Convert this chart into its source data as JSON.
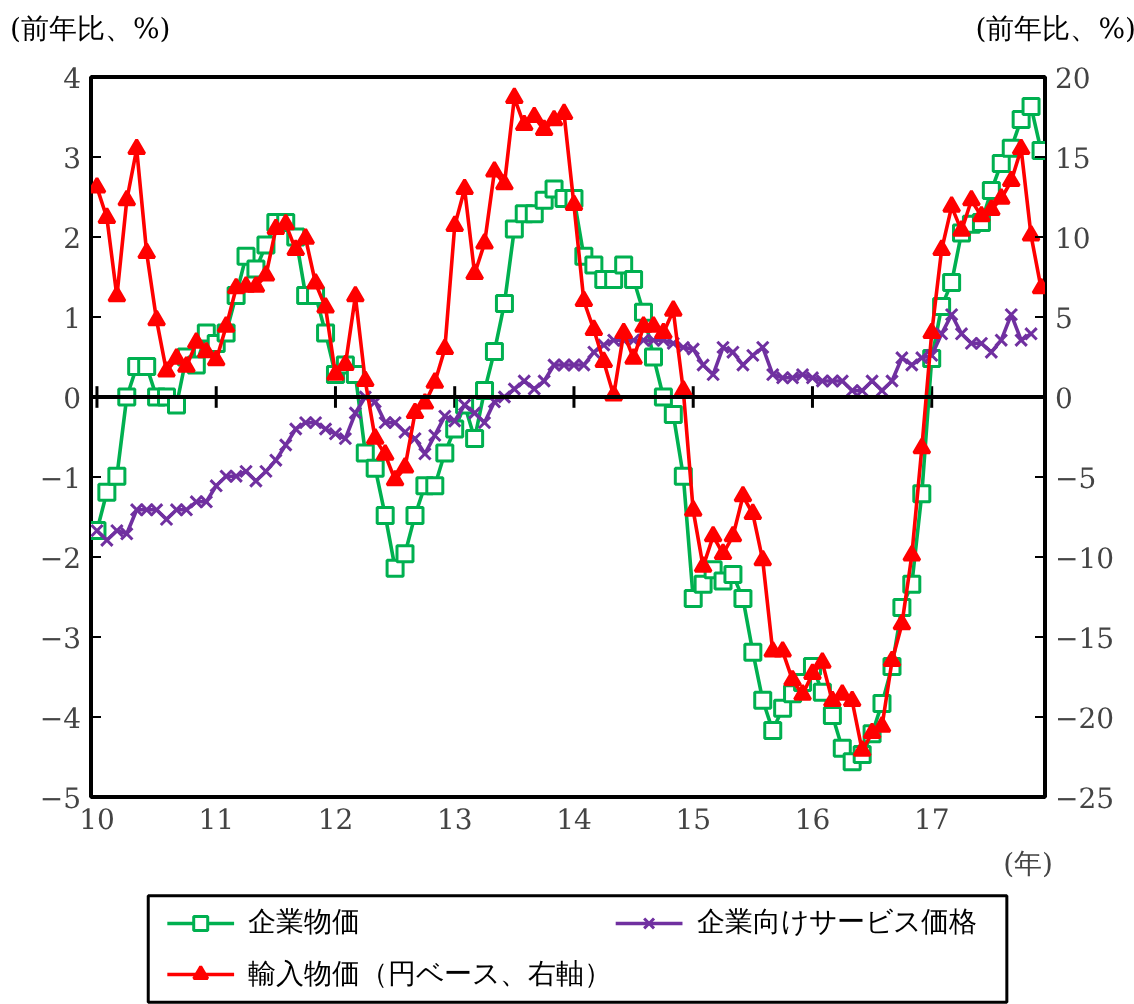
{
  "chart_data": {
    "type": "line",
    "ylabel": "(前年比、%)",
    "y2label": "(前年比、%)",
    "xlabel": "(年)",
    "xlim": [
      9.95,
      17.95
    ],
    "xticks": [
      10,
      11,
      12,
      13,
      14,
      15,
      16,
      17
    ],
    "ylim": [
      -5,
      4
    ],
    "yticks": [
      -5,
      -4,
      -3,
      -2,
      -1,
      0,
      1,
      2,
      3,
      4
    ],
    "y2lim": [
      -25,
      20
    ],
    "y2ticks": [
      -25,
      -20,
      -15,
      -10,
      -5,
      0,
      5,
      10,
      15,
      20
    ],
    "x": [
      10,
      10.083,
      10.167,
      10.25,
      10.333,
      10.417,
      10.5,
      10.583,
      10.667,
      10.75,
      10.833,
      10.917,
      11,
      11.083,
      11.167,
      11.25,
      11.333,
      11.417,
      11.5,
      11.583,
      11.667,
      11.75,
      11.833,
      11.917,
      12,
      12.083,
      12.167,
      12.25,
      12.333,
      12.417,
      12.5,
      12.583,
      12.667,
      12.75,
      12.833,
      12.917,
      13,
      13.083,
      13.167,
      13.25,
      13.333,
      13.417,
      13.5,
      13.583,
      13.667,
      13.75,
      13.833,
      13.917,
      14,
      14.083,
      14.167,
      14.25,
      14.333,
      14.417,
      14.5,
      14.583,
      14.667,
      14.75,
      14.833,
      14.917,
      15,
      15.083,
      15.167,
      15.25,
      15.333,
      15.417,
      15.5,
      15.583,
      15.667,
      15.75,
      15.833,
      15.917,
      16,
      16.083,
      16.167,
      16.25,
      16.333,
      16.417,
      16.5,
      16.583,
      16.667,
      16.75,
      16.833,
      16.917,
      17,
      17.083,
      17.167,
      17.25,
      17.333,
      17.417,
      17.5,
      17.583,
      17.667,
      17.75,
      17.833,
      17.917
    ],
    "series": [
      {
        "name": "企業物価",
        "color": "#00b050",
        "marker": "square",
        "values": [
          -1.67,
          -1.19,
          -0.99,
          0,
          0.38,
          0.38,
          0,
          0,
          -0.1,
          0.5,
          0.4,
          0.8,
          0.67,
          0.8,
          1.27,
          1.76,
          1.6,
          1.9,
          2.18,
          2.18,
          2.0,
          1.27,
          1.27,
          0.8,
          0.28,
          0.4,
          0.28,
          -0.7,
          -0.89,
          -1.48,
          -2.14,
          -1.96,
          -1.48,
          -1.11,
          -1.11,
          -0.7,
          -0.4,
          -0.1,
          -0.52,
          0.08,
          0.57,
          1.17,
          2.1,
          2.29,
          2.29,
          2.46,
          2.6,
          2.48,
          2.48,
          1.76,
          1.65,
          1.47,
          1.47,
          1.65,
          1.47,
          1.06,
          0.5,
          0,
          -0.22,
          -0.99,
          -2.52,
          -2.34,
          -2.16,
          -2.3,
          -2.22,
          -2.52,
          -3.19,
          -3.79,
          -4.17,
          -3.89,
          -3.71,
          -3.57,
          -3.37,
          -3.69,
          -3.98,
          -4.39,
          -4.56,
          -4.47,
          -4.21,
          -3.83,
          -3.37,
          -2.63,
          -2.34,
          -1.21,
          0.48,
          1.13,
          1.43,
          2.05,
          2.16,
          2.18,
          2.58,
          2.92,
          3.11,
          3.47,
          3.63,
          3.08
        ]
      },
      {
        "name": "企業向けサービス価格",
        "color": "#7030a0",
        "marker": "cross",
        "values": [
          -1.67,
          -1.79,
          -1.67,
          -1.71,
          -1.41,
          -1.41,
          -1.41,
          -1.53,
          -1.41,
          -1.41,
          -1.31,
          -1.31,
          -1.11,
          -0.99,
          -0.99,
          -0.93,
          -1.05,
          -0.93,
          -0.79,
          -0.6,
          -0.4,
          -0.32,
          -0.32,
          -0.4,
          -0.46,
          -0.52,
          -0.2,
          0,
          -0.06,
          -0.32,
          -0.32,
          -0.44,
          -0.52,
          -0.71,
          -0.48,
          -0.24,
          -0.3,
          -0.1,
          -0.2,
          -0.32,
          -0.06,
          0,
          0.1,
          0.2,
          0.1,
          0.2,
          0.4,
          0.4,
          0.4,
          0.4,
          0.56,
          0.65,
          0.71,
          0.71,
          0.71,
          0.71,
          0.71,
          0.71,
          0.67,
          0.62,
          0.6,
          0.4,
          0.28,
          0.62,
          0.56,
          0.4,
          0.52,
          0.62,
          0.28,
          0.24,
          0.24,
          0.28,
          0.24,
          0.2,
          0.2,
          0.2,
          0.08,
          0.08,
          0.2,
          0.08,
          0.2,
          0.49,
          0.4,
          0.49,
          0.52,
          0.79,
          1.03,
          0.79,
          0.67,
          0.67,
          0.56,
          0.71,
          1.03,
          0.71,
          0.79,
          null
        ]
      },
      {
        "name": "輸入物価（円ベース、右軸）",
        "color": "#ff0000",
        "marker": "triangle",
        "axis": "y2",
        "values": [
          13.1,
          11.2,
          6.3,
          12.3,
          15.5,
          9.0,
          4.8,
          1.6,
          2.4,
          1.9,
          3.4,
          2.8,
          2.3,
          4.4,
          6.8,
          6.9,
          6.9,
          7.6,
          10.5,
          10.8,
          9.2,
          9.9,
          7.1,
          5.6,
          1.4,
          2.0,
          6.3,
          1.0,
          -2.6,
          -3.6,
          -5.2,
          -4.4,
          -1.0,
          -0.4,
          0.9,
          3.0,
          10.7,
          13.0,
          7.7,
          9.6,
          14.1,
          13.3,
          18.7,
          17.0,
          17.5,
          16.7,
          17.3,
          17.7,
          12.0,
          6.0,
          4.2,
          2.2,
          0.1,
          4.0,
          2.4,
          4.4,
          4.4,
          4.0,
          5.4,
          0.4,
          -7.1,
          -10.6,
          -8.7,
          -9.8,
          -8.7,
          -6.2,
          -7.3,
          -10.2,
          -15.9,
          -15.9,
          -17.7,
          -18.6,
          -17.3,
          -16.6,
          -19.0,
          -18.6,
          -19.0,
          -22.1,
          -21.0,
          -20.6,
          -16.5,
          -14.2,
          -9.9,
          -3.2,
          4.0,
          9.2,
          11.9,
          10.4,
          12.3,
          11.3,
          11.7,
          12.4,
          13.5,
          15.5,
          10.1,
          6.8
        ]
      }
    ],
    "ref_lines": [
      {
        "axis": "y",
        "value": 0,
        "color": "#000000"
      }
    ],
    "legend": "bottom",
    "grid": false
  }
}
